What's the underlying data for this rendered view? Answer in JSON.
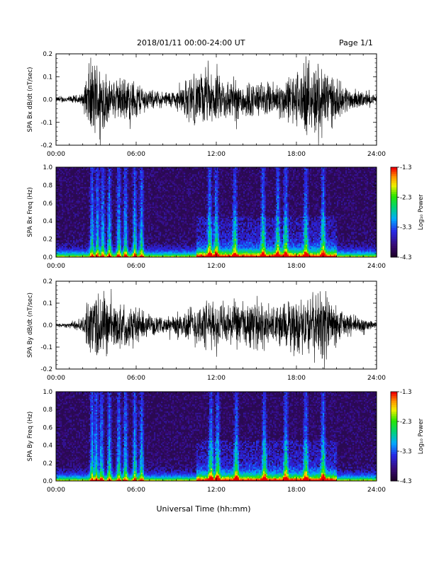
{
  "header": {
    "title": "2018/01/11   00:00-24:00 UT",
    "page": "Page 1/1"
  },
  "x_axis": {
    "label": "Universal Time (hh:mm)",
    "ticks": [
      "00:00",
      "06:00",
      "12:00",
      "18:00",
      "24:00"
    ],
    "xlim": [
      0,
      24
    ]
  },
  "colorbar": {
    "label": "Log₁₀ Power",
    "ticks": [
      "-1.3",
      "-2.3",
      "-3.3",
      "-4.3"
    ],
    "range": [
      -4.3,
      -1.3
    ]
  },
  "colors": {
    "trace": "#000000",
    "spectrogram_background": "#2a0a52"
  },
  "chart_data": [
    {
      "type": "line",
      "ylabel": "SPA Bx dB/dt (nT/sec)",
      "ylim": [
        -0.2,
        0.2
      ],
      "yticks": [
        "0.2",
        "0.1",
        "0.0",
        "-0.1",
        "-0.2"
      ],
      "envelope": {
        "hours": [
          0,
          1,
          2,
          2.5,
          3,
          3.5,
          4,
          5,
          6,
          7,
          8,
          9,
          10,
          11,
          12,
          13,
          14,
          15,
          16,
          17,
          18,
          19,
          20,
          21,
          22,
          23,
          24
        ],
        "amplitude": [
          0.015,
          0.018,
          0.03,
          0.2,
          0.2,
          0.2,
          0.09,
          0.12,
          0.1,
          0.05,
          0.04,
          0.05,
          0.12,
          0.14,
          0.12,
          0.11,
          0.1,
          0.09,
          0.09,
          0.1,
          0.15,
          0.18,
          0.2,
          0.1,
          0.06,
          0.04,
          0.02
        ]
      }
    },
    {
      "type": "heatmap",
      "ylabel": "SPA Bx Freq (Hz)",
      "ylim": [
        0.0,
        1.0
      ],
      "yticks": [
        "1.0",
        "0.8",
        "0.6",
        "0.4",
        "0.2",
        "0.0"
      ],
      "bursts": [
        2.7,
        3.1,
        3.5,
        4.0,
        4.7,
        5.2,
        5.9,
        6.4,
        11.5,
        12.0,
        13.4,
        15.5,
        16.6,
        17.2,
        18.7,
        20.0
      ]
    },
    {
      "type": "line",
      "ylabel": "SPA By dB/dt (nT/sec)",
      "ylim": [
        -0.2,
        0.2
      ],
      "yticks": [
        "0.2",
        "0.1",
        "0.0",
        "-0.1",
        "-0.2"
      ],
      "envelope": {
        "hours": [
          0,
          1,
          2,
          2.5,
          3,
          3.5,
          4,
          5,
          6,
          7,
          8,
          9,
          10,
          11,
          12,
          13,
          14,
          15,
          16,
          17,
          18,
          19,
          20,
          21,
          22,
          23,
          24
        ],
        "amplitude": [
          0.01,
          0.015,
          0.04,
          0.15,
          0.2,
          0.2,
          0.12,
          0.12,
          0.1,
          0.05,
          0.04,
          0.06,
          0.1,
          0.13,
          0.12,
          0.12,
          0.13,
          0.12,
          0.11,
          0.12,
          0.14,
          0.16,
          0.2,
          0.1,
          0.06,
          0.04,
          0.02
        ]
      }
    },
    {
      "type": "heatmap",
      "ylabel": "SPA By Freq (Hz)",
      "ylim": [
        0.0,
        1.0
      ],
      "yticks": [
        "1.0",
        "0.8",
        "0.6",
        "0.4",
        "0.2",
        "0.0"
      ],
      "bursts": [
        2.7,
        3.0,
        3.4,
        4.0,
        4.7,
        5.2,
        5.9,
        6.4,
        11.6,
        12.1,
        13.5,
        15.6,
        17.2,
        18.7,
        20.0
      ]
    }
  ]
}
